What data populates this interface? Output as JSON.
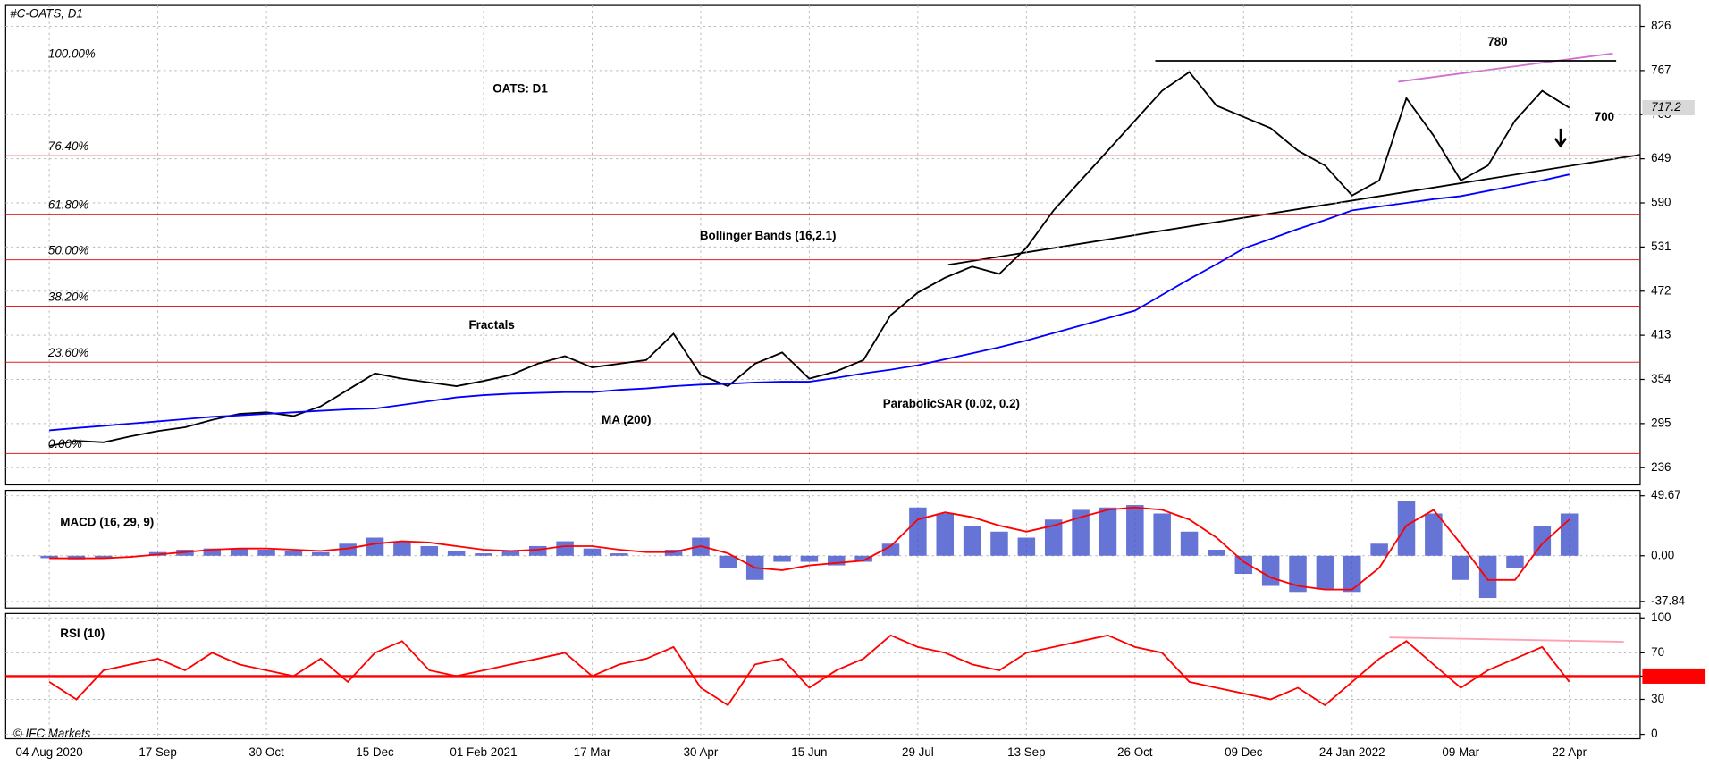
{
  "chart_data": [
    {
      "type": "line",
      "title": "#C-OATS, D1",
      "annotations": [
        "OATS: D1",
        "Fractals",
        "Bollinger Bands (16,2.1)",
        "ParabolicSAR (0.02, 0.2)"
      ],
      "categories": [
        "04 Aug 2020",
        null,
        null,
        null,
        "17 Sep",
        null,
        null,
        null,
        "30 Oct",
        null,
        null,
        null,
        "15 Dec",
        null,
        null,
        null,
        "01 Feb 2021",
        null,
        null,
        null,
        "17 Mar",
        null,
        null,
        null,
        "30 Apr",
        null,
        null,
        null,
        "15 Jun",
        null,
        null,
        null,
        "29 Jul",
        null,
        null,
        null,
        "13 Sep",
        null,
        null,
        null,
        "26 Oct",
        null,
        null,
        null,
        "09 Dec",
        null,
        null,
        null,
        "24 Jan 2022",
        null,
        null,
        null,
        "09 Mar",
        null,
        null,
        null,
        "22 Apr"
      ],
      "series": [
        {
          "color": "#000000",
          "values": [
            265,
            272,
            270,
            278,
            285,
            290,
            300,
            308,
            310,
            305,
            318,
            340,
            362,
            355,
            350,
            345,
            352,
            360,
            375,
            385,
            370,
            375,
            380,
            415,
            360,
            345,
            375,
            390,
            355,
            365,
            380,
            440,
            470,
            490,
            505,
            495,
            530,
            580,
            620,
            660,
            700,
            740,
            765,
            720,
            705,
            690,
            660,
            640,
            600,
            620,
            730,
            680,
            620,
            640,
            700,
            740,
            717.2
          ]
        },
        {
          "name": "MA (200)",
          "color": "#0000ff",
          "values": [
            286,
            289,
            292,
            295,
            298,
            301,
            304,
            306,
            308,
            310,
            312,
            314,
            315,
            320,
            325,
            330,
            333,
            335,
            336,
            337,
            337,
            340,
            342,
            345,
            347,
            348,
            350,
            351,
            351,
            356,
            362,
            367,
            373,
            381,
            389,
            397,
            406,
            416,
            426,
            436,
            446,
            467,
            488,
            508,
            529,
            542,
            555,
            567,
            580,
            585,
            590,
            595,
            599,
            606,
            613,
            620,
            628
          ]
        }
      ],
      "fib_levels": [
        {
          "label": "100.00%",
          "value": 777
        },
        {
          "label": "76.40%",
          "value": 653
        },
        {
          "label": "61.80%",
          "value": 575
        },
        {
          "label": "50.00%",
          "value": 514
        },
        {
          "label": "38.20%",
          "value": 452
        },
        {
          "label": "23.60%",
          "value": 377
        },
        {
          "label": "0.00%",
          "value": 255
        }
      ],
      "resistance": 780,
      "target": 700,
      "ylim": [
        213,
        854
      ],
      "yticks": [
        236,
        295,
        354,
        413,
        472,
        531,
        590,
        649,
        708,
        767,
        826
      ],
      "grid": true,
      "copyright": "© IFC Markets"
    },
    {
      "type": "bar",
      "title": "MACD (16, 29, 9)",
      "series": [
        {
          "color": "#3345c8",
          "values": [
            -2,
            -3,
            -2,
            0,
            3,
            5,
            6,
            6,
            5,
            4,
            3,
            10,
            15,
            12,
            8,
            4,
            2,
            4,
            8,
            12,
            6,
            2,
            0,
            5,
            15,
            -10,
            -20,
            -5,
            -5,
            -8,
            -5,
            10,
            40,
            35,
            25,
            20,
            15,
            30,
            38,
            40,
            42,
            35,
            20,
            5,
            -15,
            -25,
            -30,
            -28,
            -30,
            10,
            45,
            35,
            -20,
            -35,
            -10,
            25,
            35
          ]
        },
        {
          "color": "#ff0000",
          "values": [
            -2,
            -2,
            -2,
            -1,
            1,
            3,
            5,
            6,
            6,
            5,
            4,
            6,
            10,
            12,
            11,
            8,
            5,
            4,
            5,
            8,
            8,
            5,
            3,
            3,
            8,
            2,
            -10,
            -12,
            -8,
            -6,
            -4,
            8,
            30,
            36,
            32,
            25,
            20,
            25,
            32,
            38,
            40,
            38,
            30,
            15,
            -5,
            -18,
            -25,
            -28,
            -28,
            -10,
            25,
            38,
            10,
            -20,
            -20,
            10,
            30
          ]
        }
      ],
      "ylim": [
        -43.3,
        54.2
      ],
      "yticks": [
        {
          "value": -37.84,
          "label": "-37.84"
        },
        {
          "value": 0,
          "label": "0.00"
        },
        {
          "value": 49.67,
          "label": "49.67"
        }
      ]
    },
    {
      "type": "line",
      "title": "RSI (10)",
      "series": [
        {
          "color": "#ff0000",
          "values": [
            45,
            30,
            55,
            60,
            65,
            55,
            70,
            60,
            55,
            50,
            65,
            45,
            70,
            80,
            55,
            50,
            55,
            60,
            65,
            70,
            50,
            60,
            65,
            75,
            40,
            25,
            60,
            65,
            40,
            55,
            65,
            85,
            75,
            70,
            60,
            55,
            70,
            75,
            80,
            85,
            75,
            70,
            45,
            40,
            35,
            30,
            40,
            25,
            45,
            65,
            80,
            60,
            40,
            55,
            65,
            75,
            45
          ]
        }
      ],
      "level": 50,
      "ylim": [
        -3.8,
        103.8
      ],
      "yticks": [
        0,
        30,
        50,
        70,
        100
      ]
    }
  ]
}
